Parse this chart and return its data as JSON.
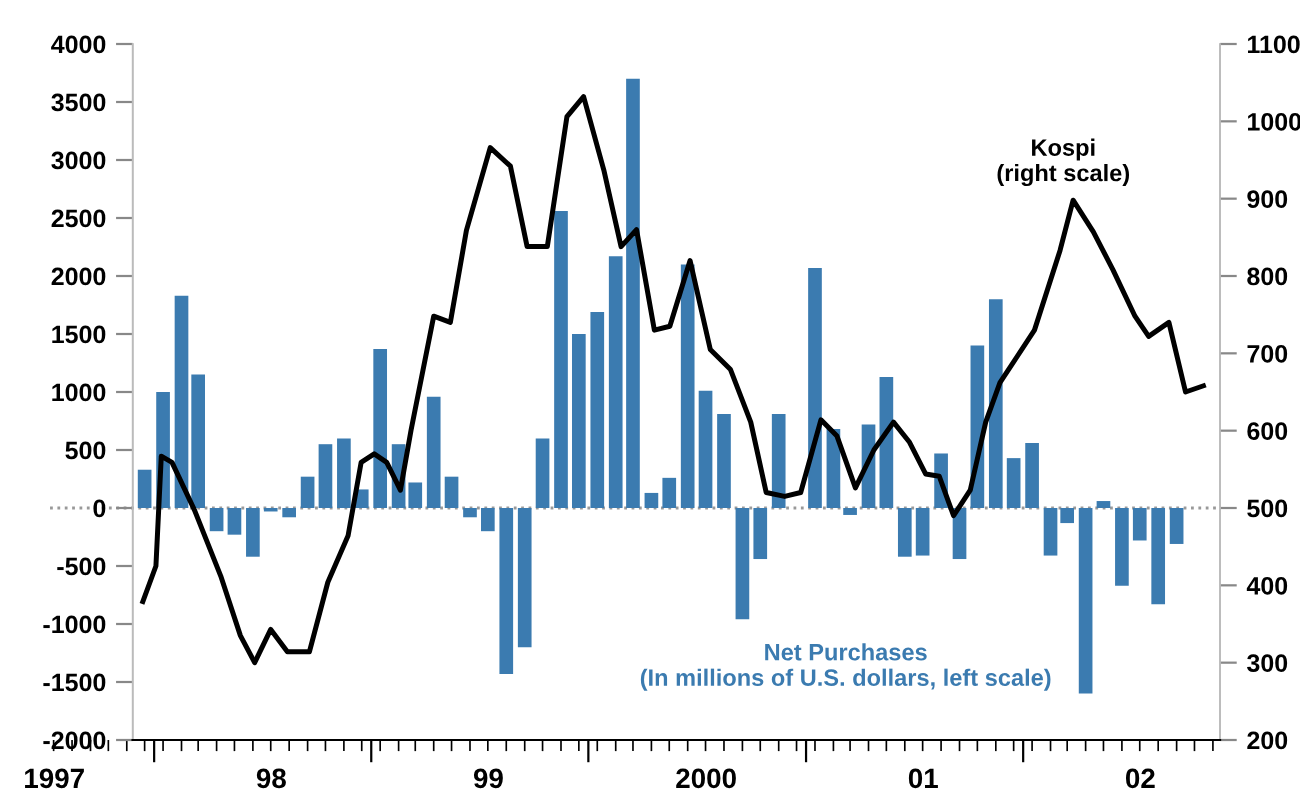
{
  "chart_data": {
    "type": "bar",
    "x": [
      "1997-12",
      "1998-01",
      "1998-02",
      "1998-03",
      "1998-04",
      "1998-05",
      "1998-06",
      "1998-07",
      "1998-08",
      "1998-09",
      "1998-10",
      "1998-11",
      "1998-12",
      "1999-01",
      "1999-02",
      "1999-03",
      "1999-04",
      "1999-05",
      "1999-06",
      "1999-07",
      "1999-08",
      "1999-09",
      "1999-10",
      "1999-11",
      "1999-12",
      "2000-01",
      "2000-02",
      "2000-03",
      "2000-04",
      "2000-05",
      "2000-06",
      "2000-07",
      "2000-08",
      "2000-09",
      "2000-10",
      "2000-11",
      "2000-12",
      "2001-01",
      "2001-02",
      "2001-03",
      "2001-04",
      "2001-05",
      "2001-06",
      "2001-07",
      "2001-08",
      "2001-09",
      "2001-10",
      "2001-11",
      "2001-12",
      "2002-01",
      "2002-02",
      "2002-03",
      "2002-04",
      "2002-05",
      "2002-06",
      "2002-07",
      "2002-08",
      "2002-09"
    ],
    "series": [
      {
        "name": "Net Purchases\n(In millions of U.S. dollars, left scale)",
        "color": "#3b7bb0",
        "values": [
          330,
          1000,
          1830,
          1150,
          -200,
          -230,
          -420,
          -30,
          -80,
          270,
          550,
          600,
          160,
          1370,
          550,
          220,
          960,
          270,
          -80,
          -200,
          -1430,
          -1200,
          600,
          2560,
          1500,
          1690,
          2170,
          3700,
          130,
          260,
          2100,
          1010,
          810,
          -960,
          -440,
          810,
          0,
          2070,
          680,
          -60,
          720,
          1130,
          -420,
          -410,
          470,
          -440,
          1400,
          1800,
          430,
          560,
          -410,
          -130,
          -1600,
          60,
          -670,
          -280,
          -830,
          -310
        ]
      },
      {
        "name": "Kospi\n(right scale)",
        "type": "line",
        "axis": "y2",
        "color": "#000000",
        "x": [
          "1997-11-28",
          "1997-12-20",
          "1997-12-29",
          "1998-01-16",
          "1998-02-23",
          "1998-04-08",
          "1998-05-11",
          "1998-06-04",
          "1998-07-01",
          "1998-07-29",
          "1998-09-04",
          "1998-10-05",
          "1998-11-08",
          "1998-11-30",
          "1998-12-22",
          "1999-01-12",
          "1999-02-04",
          "1999-02-22",
          "1999-04-01",
          "1999-04-29",
          "1999-05-26",
          "1999-07-05",
          "1999-08-08",
          "1999-09-05",
          "1999-10-09",
          "1999-11-11",
          "1999-12-09",
          "2000-01-12",
          "2000-02-10",
          "2000-03-07",
          "2000-04-06",
          "2000-05-02",
          "2000-06-05",
          "2000-07-09",
          "2000-08-12",
          "2000-09-15",
          "2000-10-11",
          "2000-11-11",
          "2000-12-08",
          "2001-01-11",
          "2001-02-07",
          "2001-03-10",
          "2001-04-10",
          "2001-05-13",
          "2001-06-09",
          "2001-07-06",
          "2001-07-29",
          "2001-08-22",
          "2001-09-19",
          "2001-10-15",
          "2001-11-08",
          "2002-01-05",
          "2002-02-17",
          "2002-03-11",
          "2002-04-14",
          "2002-05-17",
          "2002-06-23",
          "2002-07-16",
          "2002-08-19",
          "2002-09-16",
          "2002-10-16"
        ],
        "values": [
          379,
          425,
          567,
          559,
          497,
          412,
          335,
          300,
          343,
          314,
          314,
          404,
          464,
          559,
          570,
          559,
          523,
          601,
          748,
          740,
          859,
          966,
          942,
          838,
          838,
          1006,
          1032,
          937,
          838,
          860,
          730,
          735,
          820,
          705,
          679,
          611,
          520,
          515,
          520,
          614,
          593,
          526,
          575,
          611,
          585,
          544,
          541,
          490,
          523,
          611,
          662,
          730,
          833,
          898,
          857,
          808,
          748,
          722,
          740,
          650,
          658
        ]
      }
    ],
    "xlim": [
      "1997-06-25",
      "2002-11-13"
    ],
    "xticks": [
      {
        "value": "1997-07-02",
        "label": "1997"
      },
      {
        "value": "1997-12-17",
        "label": null
      },
      {
        "value": "1998-07-02",
        "label": "98"
      },
      {
        "value": "1998-12-17",
        "label": null
      },
      {
        "value": "1999-07-02",
        "label": "99"
      },
      {
        "value": "1999-12-17",
        "label": null
      },
      {
        "value": "2000-07-02",
        "label": "2000"
      },
      {
        "value": "2000-12-17",
        "label": null
      },
      {
        "value": "2001-07-02",
        "label": "01"
      },
      {
        "value": "2001-12-17",
        "label": null
      },
      {
        "value": "2002-07-02",
        "label": "02"
      }
    ],
    "ylim": [
      -2000,
      4000
    ],
    "yticks": [
      -2000,
      -1500,
      -1000,
      -500,
      0,
      500,
      1000,
      1500,
      2000,
      2500,
      3000,
      3500,
      4000
    ],
    "y2lim": [
      200,
      1100
    ],
    "y2ticks": [
      200,
      300,
      400,
      500,
      600,
      700,
      800,
      900,
      1000,
      1100
    ],
    "ref_lines": [
      {
        "axis": "y",
        "value": 0,
        "color": "#999999",
        "line_style": "dotted"
      }
    ],
    "grid": false
  }
}
